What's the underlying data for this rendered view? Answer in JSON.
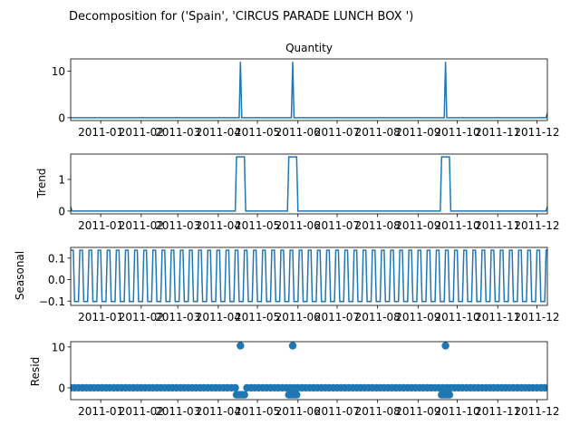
{
  "figure": {
    "suptitle": "Decomposition for ('Spain', 'CIRCUS PARADE LUNCH BOX ')",
    "series_color": "#1f77b4"
  },
  "chart_data": [
    {
      "type": "line",
      "panel": "observed",
      "title": "Quantity",
      "ylabel": "",
      "xlim": [
        "2010-12-09",
        "2011-12-09"
      ],
      "ylim": [
        -0.6,
        12.6
      ],
      "yticks": [
        0,
        10
      ],
      "xtick_labels": [
        "2011-01",
        "2011-02",
        "2011-03",
        "2011-04",
        "2011-05",
        "2011-06",
        "2011-07",
        "2011-08",
        "2011-09",
        "2011-10",
        "2011-11",
        "2011-12"
      ],
      "baseline": 0,
      "spikes": [
        {
          "x": "2011-04-18",
          "y": 12
        },
        {
          "x": "2011-05-28",
          "y": 12
        },
        {
          "x": "2011-09-22",
          "y": 12
        }
      ],
      "end_point": {
        "x": "2011-12-09",
        "y": 1
      }
    },
    {
      "type": "line",
      "panel": "trend",
      "title": "",
      "ylabel": "Trend",
      "xlim": [
        "2010-12-09",
        "2011-12-09"
      ],
      "ylim": [
        -0.09,
        1.8
      ],
      "yticks": [
        0,
        1
      ],
      "xtick_labels": [
        "2011-01",
        "2011-02",
        "2011-03",
        "2011-04",
        "2011-05",
        "2011-06",
        "2011-07",
        "2011-08",
        "2011-09",
        "2011-10",
        "2011-11",
        "2011-12"
      ],
      "baseline": 0,
      "plateaus": [
        {
          "start": "2011-04-15",
          "end": "2011-04-21",
          "y": 1.71
        },
        {
          "start": "2011-05-25",
          "end": "2011-05-31",
          "y": 1.71
        },
        {
          "start": "2011-09-19",
          "end": "2011-09-25",
          "y": 1.71
        }
      ],
      "start_value": 0.14,
      "end_value": 0.14
    },
    {
      "type": "line",
      "panel": "seasonal",
      "title": "",
      "ylabel": "Seasonal",
      "xlim": [
        "2010-12-09",
        "2011-12-09"
      ],
      "ylim": [
        -0.12,
        0.15
      ],
      "yticks": [
        -0.1,
        0.0,
        0.1
      ],
      "ytick_labels": [
        "−0.1",
        "0.0",
        "0.1"
      ],
      "xtick_labels": [
        "2011-01",
        "2011-02",
        "2011-03",
        "2011-04",
        "2011-05",
        "2011-06",
        "2011-07",
        "2011-08",
        "2011-09",
        "2011-10",
        "2011-11",
        "2011-12"
      ],
      "period_days": 7,
      "weekly_pattern": [
        0.137,
        0.137,
        0.137,
        -0.102,
        -0.102,
        -0.102,
        -0.102
      ]
    },
    {
      "type": "scatter",
      "panel": "resid",
      "title": "",
      "ylabel": "Resid",
      "xlim": [
        "2010-12-09",
        "2011-12-09"
      ],
      "ylim": [
        -2.9,
        11.3
      ],
      "yticks": [
        0,
        10
      ],
      "xtick_labels": [
        "2011-01",
        "2011-02",
        "2011-03",
        "2011-04",
        "2011-05",
        "2011-06",
        "2011-07",
        "2011-08",
        "2011-09",
        "2011-10",
        "2011-11",
        "2011-12"
      ],
      "period_days": 3,
      "baseline": 0,
      "spikes": [
        {
          "x": "2011-04-18",
          "y": 10.3
        },
        {
          "x": "2011-05-28",
          "y": 10.3
        },
        {
          "x": "2011-09-22",
          "y": 10.3
        }
      ],
      "dips": [
        {
          "start": "2011-04-15",
          "end": "2011-04-21",
          "y": -1.7
        },
        {
          "start": "2011-05-25",
          "end": "2011-05-31",
          "y": -1.7
        },
        {
          "start": "2011-09-19",
          "end": "2011-09-25",
          "y": -1.7
        }
      ]
    }
  ]
}
